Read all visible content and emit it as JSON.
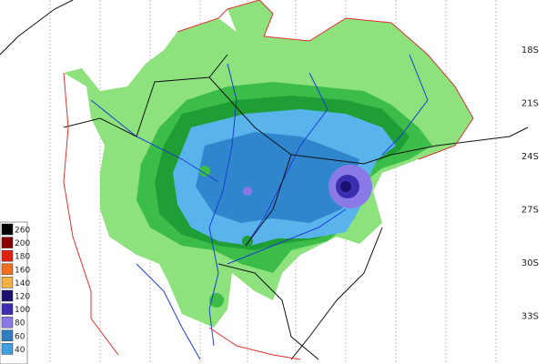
{
  "map": {
    "lat_labels": [
      "18S",
      "21S",
      "24S",
      "27S",
      "30S",
      "33S"
    ],
    "legend": [
      {
        "label": 260,
        "color": "#000000"
      },
      {
        "label": 200,
        "color": "#8b0000"
      },
      {
        "label": 180,
        "color": "#e02010"
      },
      {
        "label": 160,
        "color": "#f07020"
      },
      {
        "label": 140,
        "color": "#f4b040"
      },
      {
        "label": 120,
        "color": "#1a1070"
      },
      {
        "label": 100,
        "color": "#3b2fb0"
      },
      {
        "label": 80,
        "color": "#8a7ae8"
      },
      {
        "label": 60,
        "color": "#2f7fc0"
      },
      {
        "label": 40,
        "color": "#3fa0e0"
      }
    ]
  }
}
